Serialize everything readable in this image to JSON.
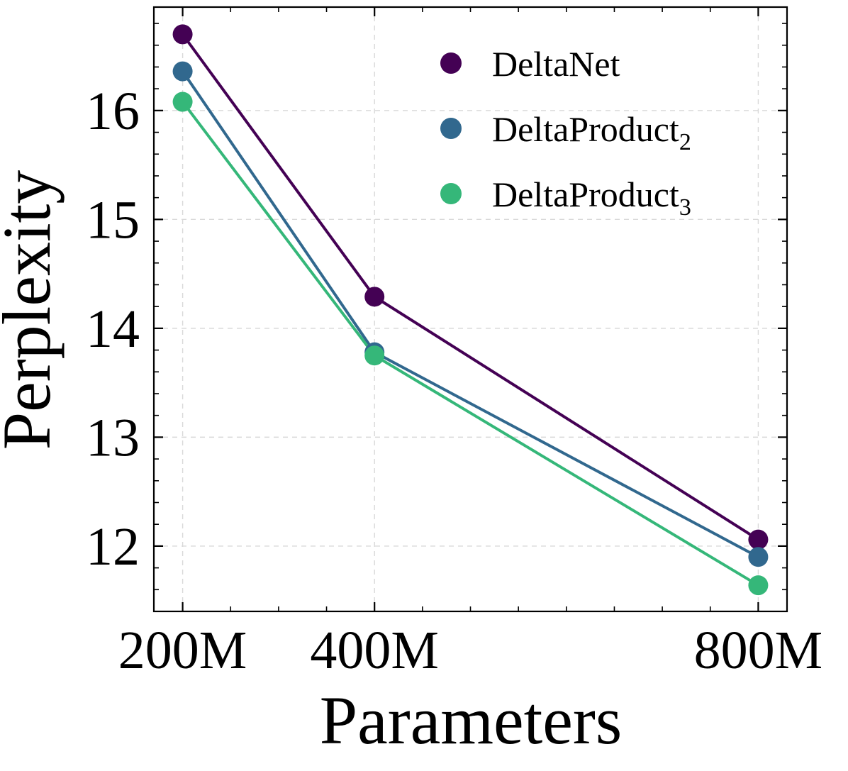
{
  "chart_data": {
    "type": "line",
    "title": "",
    "xlabel": "Parameters",
    "ylabel": "Perplexity",
    "x": [
      200,
      400,
      800
    ],
    "categories": [
      "200M",
      "400M",
      "800M"
    ],
    "xlim": [
      170,
      830
    ],
    "ylim": [
      11.4,
      16.95
    ],
    "yticks": [
      12,
      13,
      14,
      15,
      16
    ],
    "yticklabels": [
      "12",
      "13",
      "14",
      "15",
      "16"
    ],
    "grid": true,
    "legend_position": "top-right",
    "series": [
      {
        "name": "DeltaNet",
        "label_main": "DeltaNet",
        "label_sub": "",
        "color": "#440154",
        "values": [
          16.7,
          14.29,
          12.06
        ]
      },
      {
        "name": "DeltaProduct2",
        "label_main": "DeltaProduct",
        "label_sub": "2",
        "color": "#31688e",
        "values": [
          16.36,
          13.78,
          11.9
        ]
      },
      {
        "name": "DeltaProduct3",
        "label_main": "DeltaProduct",
        "label_sub": "3",
        "color": "#35b779",
        "values": [
          16.08,
          13.75,
          11.64
        ]
      }
    ]
  }
}
